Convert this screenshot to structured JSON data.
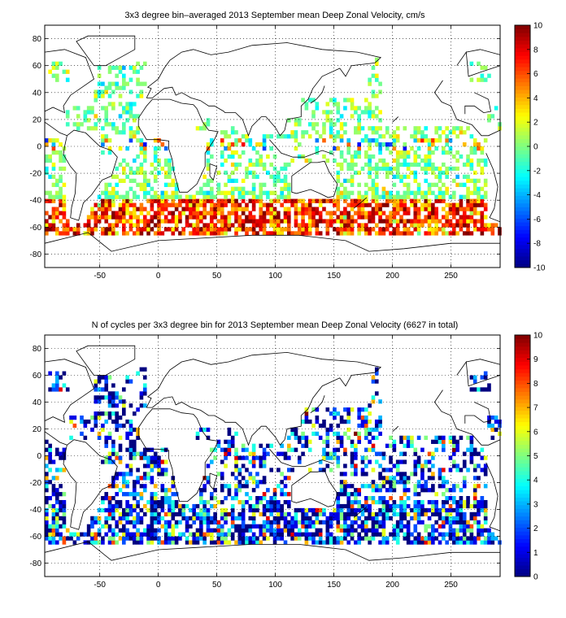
{
  "chart_data": [
    {
      "type": "heatmap",
      "title": "3x3 degree bin–averaged 2013 September mean Deep Zonal Velocity, cm/s",
      "xlim": [
        -97,
        292
      ],
      "ylim": [
        -90,
        90
      ],
      "x_ticks": [
        -50,
        0,
        50,
        100,
        150,
        200,
        250
      ],
      "y_ticks": [
        80,
        60,
        40,
        20,
        0,
        -20,
        -40,
        -60,
        -80
      ],
      "grid": "dotted",
      "bin_size_deg": 3,
      "colorbar": {
        "colormap": "jet",
        "range": [
          -10,
          10
        ],
        "ticks": [
          10,
          8,
          6,
          4,
          2,
          0,
          -2,
          -4,
          -6,
          -8,
          -10
        ]
      }
    },
    {
      "type": "heatmap",
      "title": "N of cycles per 3x3 degree bin for 2013 September mean Deep Zonal Velocity (6627 in total)",
      "xlim": [
        -97,
        292
      ],
      "ylim": [
        -90,
        90
      ],
      "x_ticks": [
        -50,
        0,
        50,
        100,
        150,
        200,
        250
      ],
      "y_ticks": [
        80,
        60,
        40,
        20,
        0,
        -20,
        -40,
        -60,
        -80
      ],
      "grid": "dotted",
      "bin_size_deg": 3,
      "colorbar": {
        "colormap": "jet",
        "range": [
          0,
          10
        ],
        "ticks": [
          10,
          9,
          8,
          7,
          6,
          5,
          4,
          3,
          2,
          1,
          0
        ]
      }
    }
  ]
}
